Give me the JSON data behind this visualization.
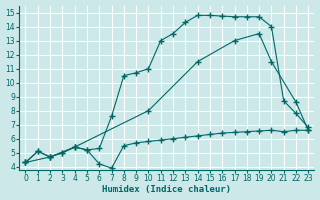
{
  "bg_color": "#cce8e8",
  "grid_color": "#ffffff",
  "line_color": "#006666",
  "xlabel": "Humidex (Indice chaleur)",
  "xlim": [
    -0.5,
    23.5
  ],
  "ylim": [
    3.8,
    15.5
  ],
  "xticks": [
    0,
    1,
    2,
    3,
    4,
    5,
    6,
    7,
    8,
    9,
    10,
    11,
    12,
    13,
    14,
    15,
    16,
    17,
    18,
    19,
    20,
    21,
    22,
    23
  ],
  "yticks": [
    4,
    5,
    6,
    7,
    8,
    9,
    10,
    11,
    12,
    13,
    14,
    15
  ],
  "line1_x": [
    0,
    1,
    2,
    3,
    4,
    5,
    6,
    7,
    8,
    9,
    10,
    11,
    12,
    13,
    14,
    15,
    16,
    17,
    18,
    19,
    20,
    21,
    22,
    23
  ],
  "line1_y": [
    4.3,
    5.1,
    4.7,
    5.0,
    5.4,
    5.2,
    4.2,
    3.9,
    5.5,
    5.7,
    5.8,
    5.9,
    6.0,
    6.1,
    6.2,
    6.3,
    6.4,
    6.45,
    6.5,
    6.55,
    6.6,
    6.5,
    6.6,
    6.6
  ],
  "line2_x": [
    0,
    1,
    2,
    3,
    4,
    5,
    6,
    7,
    8,
    9,
    10,
    11,
    12,
    13,
    14,
    15,
    16,
    17,
    18,
    19,
    20,
    21,
    22,
    23
  ],
  "line2_y": [
    4.3,
    5.1,
    4.7,
    5.0,
    5.4,
    5.2,
    5.3,
    7.6,
    10.5,
    10.7,
    11.0,
    13.0,
    13.5,
    14.3,
    14.8,
    14.8,
    14.75,
    14.7,
    14.7,
    14.7,
    14.0,
    8.7,
    7.8,
    6.8
  ],
  "line3_x": [
    0,
    2,
    4,
    10,
    14,
    17,
    19,
    20,
    22,
    23
  ],
  "line3_y": [
    4.3,
    4.7,
    5.4,
    8.0,
    11.5,
    13.0,
    13.5,
    11.5,
    8.6,
    6.6
  ]
}
